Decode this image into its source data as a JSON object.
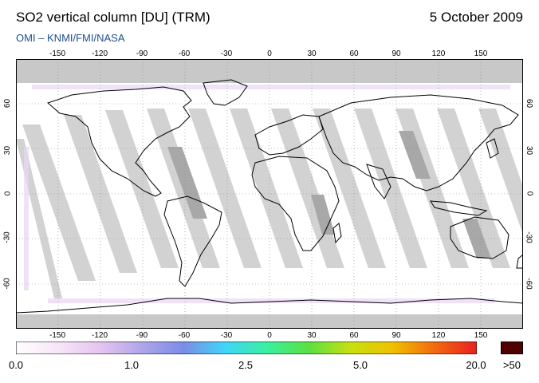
{
  "header": {
    "title": "SO2 vertical column [DU] (TRM)",
    "date": "5 October 2009",
    "credit": "OMI  –  KNMI/FMI/NASA"
  },
  "map": {
    "projection": "equirectangular",
    "lon_ticks": [
      "-150",
      "-120",
      "-90",
      "-60",
      "-30",
      "0",
      "30",
      "60",
      "90",
      "120",
      "150"
    ],
    "lat_ticks_left": [
      "60",
      "30",
      "0",
      "-30",
      "-60"
    ],
    "lat_ticks_right": [
      "60",
      "30",
      "0",
      "-30",
      "-60"
    ],
    "colors": {
      "no_data": "#c8c8c8",
      "swath_gap": "#d4d4d4",
      "background": "#ffffff",
      "coast": "#000000"
    }
  },
  "colorbar": {
    "labels": [
      "0.0",
      "1.0",
      "2.5",
      "5.0",
      "20.0"
    ],
    "overflow_label": ">50",
    "overflow_color": "#500000",
    "gradient_colors": [
      "#ffffff",
      "#f6e6f8",
      "#e6c4f0",
      "#b0a6ea",
      "#7a8ce6",
      "#40d6f8",
      "#3af0a0",
      "#5ce040",
      "#c8e010",
      "#f0c000",
      "#f06a10",
      "#e82020"
    ]
  }
}
